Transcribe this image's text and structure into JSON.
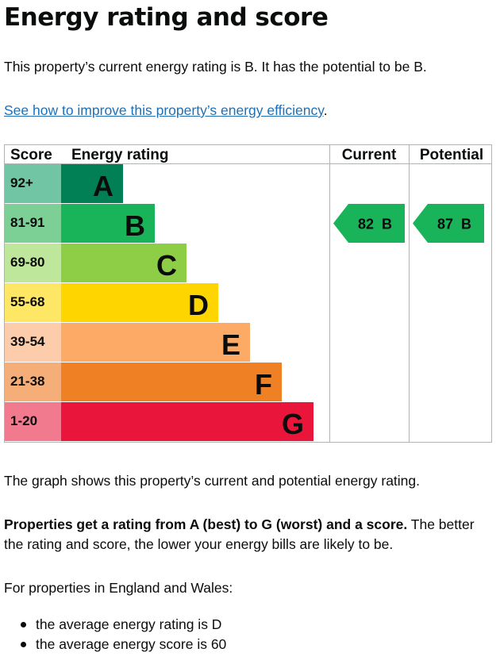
{
  "page": {
    "title": "Energy rating and score",
    "summary": "This property’s current energy rating is B. It has the potential to be B.",
    "improve_link": "See how to improve this property’s energy efficiency",
    "improve_link_suffix": "."
  },
  "chart_data": {
    "type": "table",
    "headers": {
      "score": "Score",
      "rating": "Energy rating",
      "current": "Current",
      "potential": "Potential"
    },
    "bands": [
      {
        "score": "92+",
        "letter": "A",
        "color": "#008054",
        "score_bg": "#72c5a4"
      },
      {
        "score": "81-91",
        "letter": "B",
        "color": "#19b459",
        "score_bg": "#7ccf95"
      },
      {
        "score": "69-80",
        "letter": "C",
        "color": "#8dce46",
        "score_bg": "#bee79b"
      },
      {
        "score": "55-68",
        "letter": "D",
        "color": "#ffd500",
        "score_bg": "#ffe766"
      },
      {
        "score": "39-54",
        "letter": "E",
        "color": "#fcaa65",
        "score_bg": "#fdccaa"
      },
      {
        "score": "21-38",
        "letter": "F",
        "color": "#ef8023",
        "score_bg": "#f5ae78"
      },
      {
        "score": "1-20",
        "letter": "G",
        "color": "#e9153b",
        "score_bg": "#f27a8f"
      }
    ],
    "current": {
      "score": 82,
      "letter": "B",
      "band_index": 1,
      "label": "82  B"
    },
    "potential": {
      "score": 87,
      "letter": "B",
      "band_index": 1,
      "label": "87  B"
    }
  },
  "explanation": {
    "graph_note": "The graph shows this property’s current and potential energy rating.",
    "rating_bold": "Properties get a rating from A (best) to G (worst) and a score.",
    "rating_rest": " The better the rating and score, the lower your energy bills are likely to be.",
    "regional_intro": "For properties in England and Wales:",
    "averages": [
      "the average energy rating is D",
      "the average energy score is 60"
    ]
  }
}
